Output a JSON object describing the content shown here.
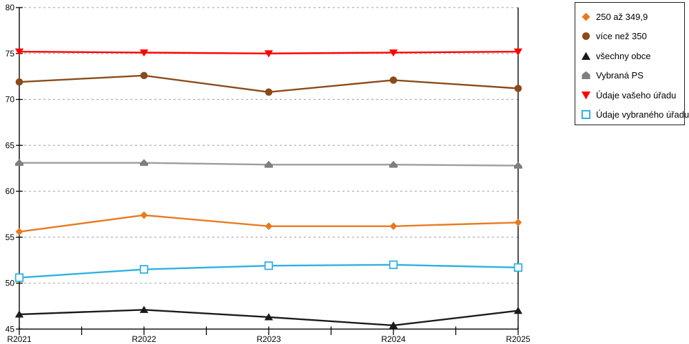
{
  "chart_data": {
    "type": "line",
    "categories": [
      "R2021",
      "R2022",
      "R2023",
      "R2024",
      "R2025"
    ],
    "series": [
      {
        "name": "250 až 349,9",
        "marker": "diamond",
        "color": "#E87A1E",
        "values": [
          55.6,
          57.4,
          56.2,
          56.2,
          56.6
        ]
      },
      {
        "name": "více než 350",
        "marker": "circle",
        "color": "#8B4A18",
        "values": [
          71.9,
          72.6,
          70.8,
          72.1,
          71.2
        ]
      },
      {
        "name": "všechny obce",
        "marker": "triangle-up",
        "color": "#1A1A1A",
        "values": [
          46.6,
          47.1,
          46.3,
          45.4,
          47.0
        ]
      },
      {
        "name": "Vybraná PS",
        "marker": "pentagon",
        "color": "#9C9C9C",
        "marker_color": "#7F7F7F",
        "values": [
          63.1,
          63.1,
          62.9,
          62.9,
          62.8
        ]
      },
      {
        "name": "Údaje vašeho úřadu",
        "marker": "triangle-down",
        "color": "#FF0000",
        "values": [
          75.2,
          75.1,
          75.0,
          75.1,
          75.2
        ]
      },
      {
        "name": "Údaje vybraného úřadu",
        "marker": "square-open",
        "color": "#2CB0E3",
        "values": [
          50.6,
          51.5,
          51.9,
          52.0,
          51.7
        ]
      }
    ],
    "title": "",
    "xlabel": "",
    "ylabel": "",
    "ylim": [
      45,
      80
    ],
    "yticks": [
      45,
      50,
      55,
      60,
      65,
      70,
      75,
      80
    ],
    "grid": "horizontal-dashed",
    "gridline_color": "#ADADAD",
    "axis_color": "#000000",
    "legend_position": "top-right"
  }
}
